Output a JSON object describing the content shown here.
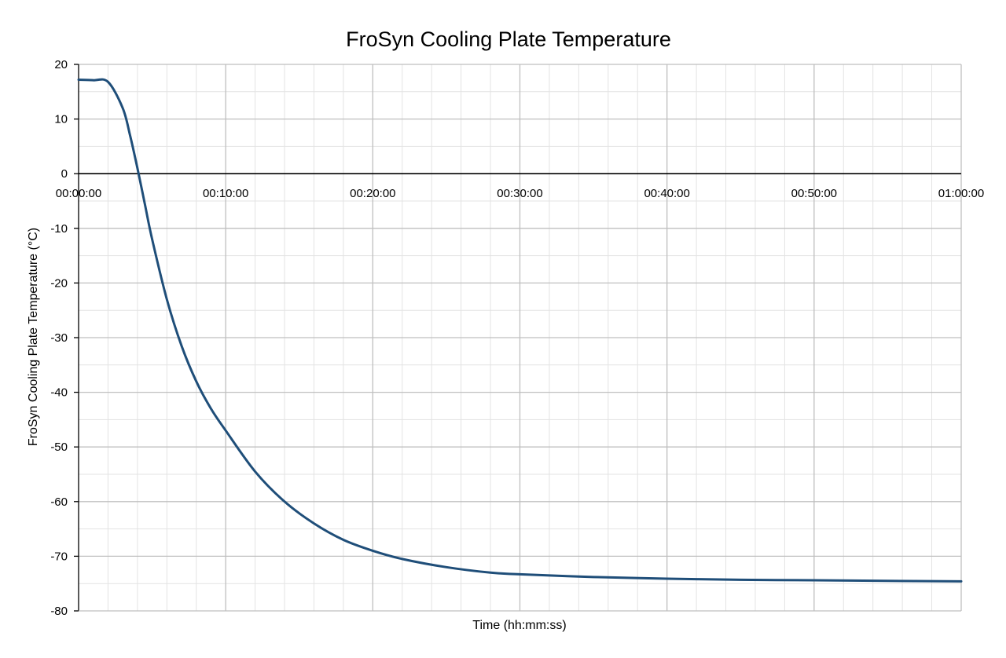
{
  "chart_data": {
    "type": "line",
    "title": "FroSyn Cooling Plate Temperature",
    "xlabel": "Time (hh:mm:ss)",
    "ylabel": "FroSyn Cooling Plate Temperature (°C)",
    "xlim": [
      "00:00:00",
      "01:00:00"
    ],
    "ylim": [
      -80,
      20
    ],
    "x_ticks": [
      "00:00:00",
      "00:10:00",
      "00:20:00",
      "00:30:00",
      "00:40:00",
      "00:50:00",
      "01:00:00"
    ],
    "y_ticks": [
      20,
      10,
      0,
      -10,
      -20,
      -30,
      -40,
      -50,
      -60,
      -70,
      -80
    ],
    "grid": true,
    "series": [
      {
        "color": "#1f4e79",
        "x": [
          "00:00:00",
          "00:01:00",
          "00:02:00",
          "00:03:00",
          "00:03:30",
          "00:04:00",
          "00:04:30",
          "00:05:00",
          "00:06:00",
          "00:07:00",
          "00:08:00",
          "00:09:00",
          "00:10:00",
          "00:12:00",
          "00:14:00",
          "00:16:00",
          "00:18:00",
          "00:20:00",
          "00:22:00",
          "00:25:00",
          "00:28:00",
          "00:30:00",
          "00:35:00",
          "00:40:00",
          "00:45:00",
          "00:50:00",
          "00:55:00",
          "01:00:00"
        ],
        "y": [
          17.2,
          17.1,
          16.8,
          12.0,
          7.0,
          1.0,
          -5.5,
          -12.0,
          -23.0,
          -31.5,
          -38.0,
          -43.0,
          -47.0,
          -54.5,
          -60.0,
          -64.0,
          -67.0,
          -69.0,
          -70.5,
          -72.0,
          -73.0,
          -73.3,
          -73.8,
          -74.1,
          -74.3,
          -74.4,
          -74.5,
          -74.6
        ]
      }
    ]
  }
}
